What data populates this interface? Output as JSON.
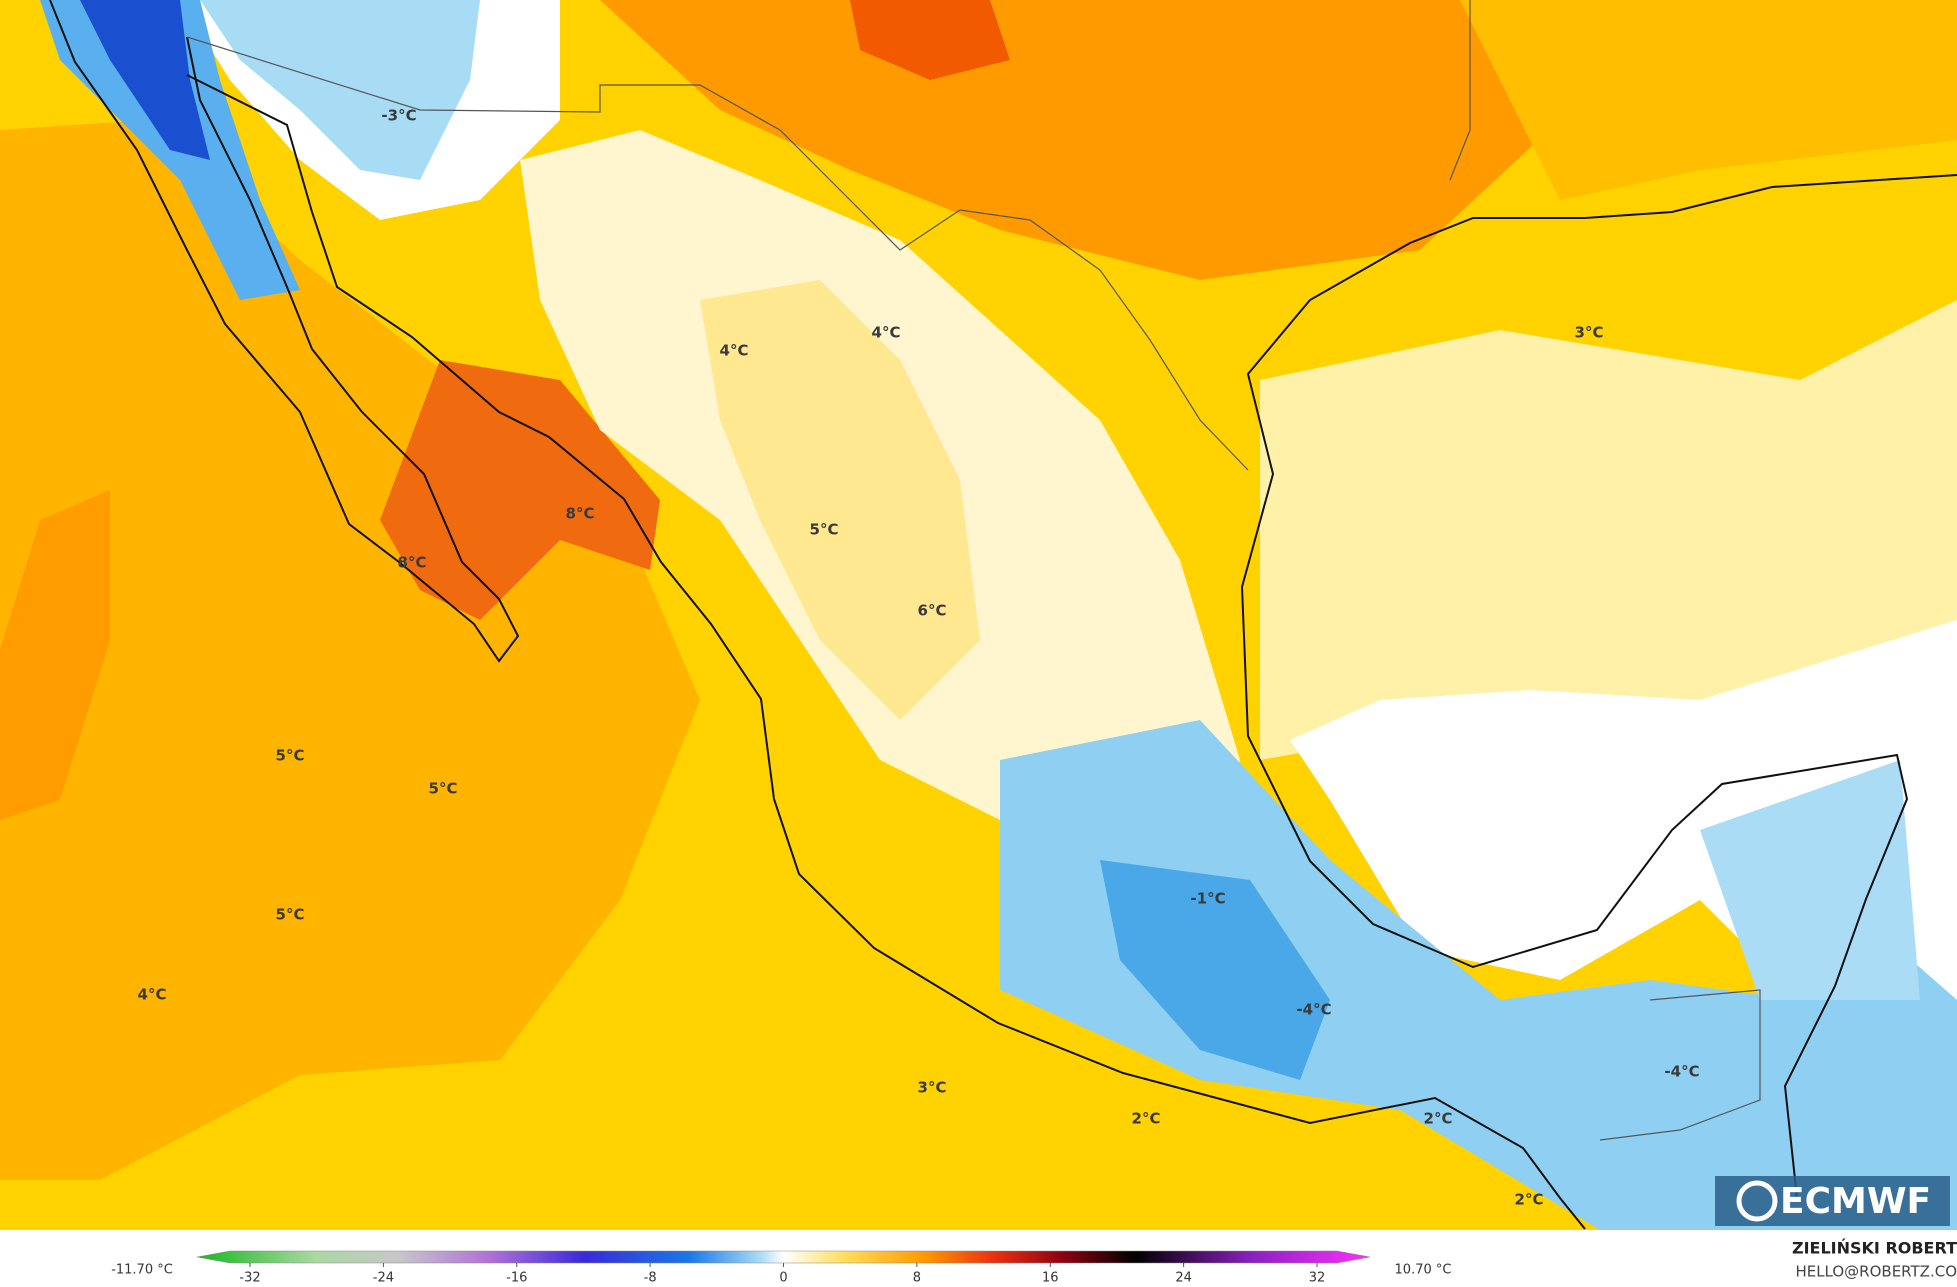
{
  "map": {
    "labels": [
      "-3°C",
      "4°C",
      "4°C",
      "3°C",
      "8°C",
      "8°C",
      "5°C",
      "6°C",
      "5°C",
      "5°C",
      "5°C",
      "4°C",
      "-1°C",
      "-4°C",
      "-4°C",
      "3°C",
      "2°C",
      "2°C",
      "2°C"
    ]
  },
  "colorbar": {
    "min_label": "-11.70 °C",
    "max_label": "10.70 °C",
    "ticks": [
      -32,
      -24,
      -16,
      -8,
      0,
      8,
      16,
      24,
      32
    ]
  },
  "credits": {
    "author": "ZIELIŃSKI ROBERT",
    "email": "HELLO@ROBERTZ.CO"
  },
  "logo": "ECMWF"
}
